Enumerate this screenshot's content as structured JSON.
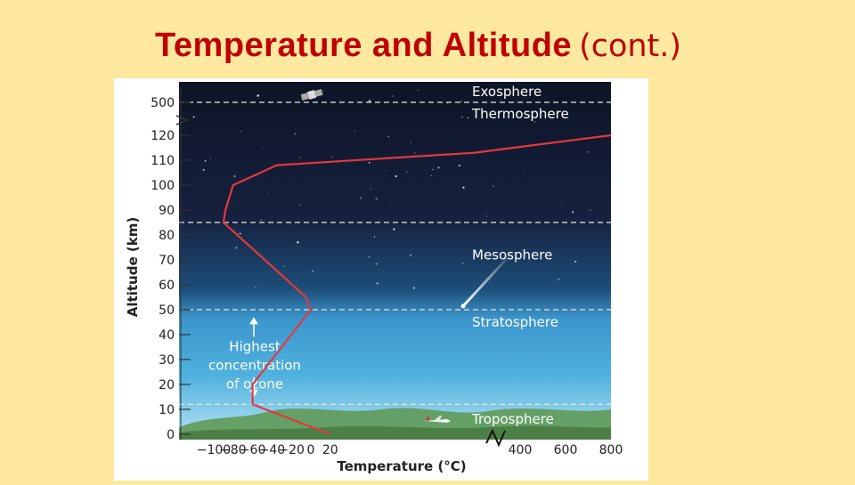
{
  "slide": {
    "title_main": "Temperature and Altitude",
    "title_cont": "(cont.)"
  },
  "chart_data": {
    "type": "line",
    "xlabel": "Temperature (°C)",
    "ylabel": "Altitude (km)",
    "x_ticks": [
      "−100",
      "−80",
      "−60",
      "−40",
      "−20",
      "0",
      "20",
      "400",
      "600",
      "800"
    ],
    "y_ticks": [
      "0",
      "10",
      "20",
      "30",
      "40",
      "50",
      "60",
      "70",
      "80",
      "90",
      "100",
      "110",
      "120",
      "500"
    ],
    "x_scale_note": "broken axis at 20 °C → 400 °C",
    "y_scale_note": "broken axis at 120 km → 500 km",
    "series": [
      {
        "points": [
          {
            "t": 20,
            "alt": 0
          },
          {
            "t": -60,
            "alt": 12
          },
          {
            "t": -60,
            "alt": 20
          },
          {
            "t": 0,
            "alt": 50
          },
          {
            "t": -5,
            "alt": 55
          },
          {
            "t": -90,
            "alt": 85
          },
          {
            "t": -88,
            "alt": 90
          },
          {
            "t": -80,
            "alt": 100
          },
          {
            "t": -35,
            "alt": 108
          },
          {
            "t": 200,
            "alt": 113
          },
          {
            "t": 800,
            "alt": 120
          }
        ],
        "color": "#E2383D"
      }
    ],
    "layers": [
      {
        "name": "Exosphere",
        "boundary_alt": 500
      },
      {
        "name": "Thermosphere",
        "boundary_alt": 500
      },
      {
        "name": "Mesosphere",
        "boundary_alt": 85
      },
      {
        "name": "Stratosphere",
        "boundary_alt": 50
      },
      {
        "name": "Troposphere",
        "boundary_alt": 12
      }
    ],
    "boundaries_km": [
      12,
      50,
      85,
      500
    ],
    "annotation": {
      "lines": [
        "Highest",
        "concentration",
        "of ozone"
      ],
      "span_alt": [
        15,
        47
      ]
    }
  }
}
